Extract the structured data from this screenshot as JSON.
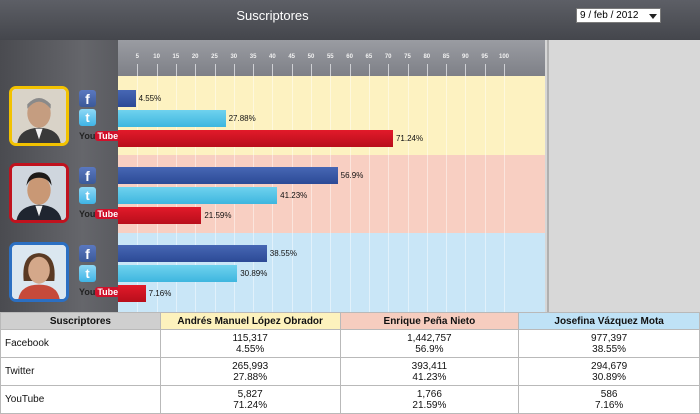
{
  "header": {
    "title": "Suscriptores",
    "date_value": "9 / feb / 2012"
  },
  "colors": {
    "facebook": "#3b5998",
    "twitter": "#4fc1e6",
    "youtube": "#d0112b",
    "amlo_band": "#fdf2c1",
    "epn_band": "#f8cfc2",
    "jvm_band": "#c9e6f7",
    "amlo_frame": "#f2c200",
    "epn_frame": "#c0121e",
    "jvm_frame": "#2b6fc2"
  },
  "icons": {
    "facebook": "facebook-icon",
    "twitter": "twitter-icon",
    "youtube": "youtube-icon"
  },
  "icon_text": {
    "fb": "f",
    "tw": "t",
    "yt_you": "You",
    "yt_tube": "Tube"
  },
  "scale": {
    "ticks": [
      "5",
      "10",
      "15",
      "20",
      "25",
      "30",
      "35",
      "40",
      "45",
      "50",
      "55",
      "60",
      "65",
      "70",
      "75",
      "80",
      "85",
      "90",
      "95",
      "100"
    ]
  },
  "chart_data": {
    "type": "bar",
    "orientation": "horizontal",
    "xlim": [
      0,
      100
    ],
    "groups": [
      {
        "candidate": "Andrés Manuel López Obrador",
        "values": [
          4.55,
          27.88,
          71.24
        ],
        "labels": [
          "4.55%",
          "27.88%",
          "71.24%"
        ]
      },
      {
        "candidate": "Enrique Peña Nieto",
        "values": [
          56.9,
          41.23,
          21.59
        ],
        "labels": [
          "56.9%",
          "41.23%",
          "21.59%"
        ]
      },
      {
        "candidate": "Josefina Vázquez Mota",
        "values": [
          38.55,
          30.89,
          7.16
        ],
        "labels": [
          "38.55%",
          "30.89%",
          "7.16%"
        ]
      }
    ],
    "series": [
      "Facebook",
      "Twitter",
      "YouTube"
    ]
  },
  "table": {
    "headers": [
      "Suscriptores",
      "Andrés Manuel López Obrador",
      "Enrique Peña Nieto",
      "Josefina Vázquez Mota"
    ],
    "rows": [
      {
        "label": "Facebook",
        "cells": [
          [
            "115,317",
            "4.55%"
          ],
          [
            "1,442,757",
            "56.9%"
          ],
          [
            "977,397",
            "38.55%"
          ]
        ]
      },
      {
        "label": "Twitter",
        "cells": [
          [
            "265,993",
            "27.88%"
          ],
          [
            "393,411",
            "41.23%"
          ],
          [
            "294,679",
            "30.89%"
          ]
        ]
      },
      {
        "label": "YouTube",
        "cells": [
          [
            "5,827",
            "71.24%"
          ],
          [
            "1,766",
            "21.59%"
          ],
          [
            "586",
            "7.16%"
          ]
        ]
      }
    ]
  }
}
